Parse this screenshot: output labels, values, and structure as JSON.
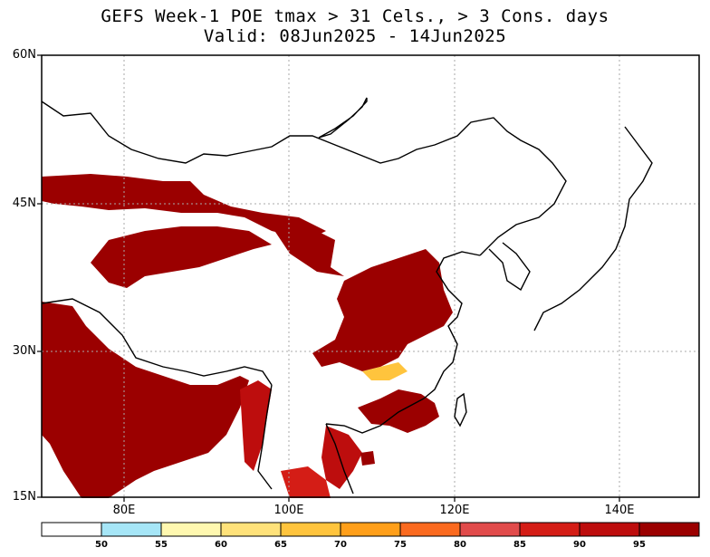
{
  "title": {
    "line1": "GEFS Week-1 POE tmax > 31 Cels., > 3 Cons. days",
    "line2": "Valid: 08Jun2025 - 14Jun2025"
  },
  "axes": {
    "lat_labels": [
      "60N",
      "45N",
      "30N",
      "15N"
    ],
    "lon_labels": [
      "80E",
      "100E",
      "120E",
      "140E"
    ]
  },
  "colorbar": {
    "levels": [
      "50",
      "55",
      "60",
      "65",
      "70",
      "75",
      "80",
      "85",
      "90",
      "95"
    ],
    "colors": [
      "#ffffff",
      "#a6e6f7",
      "#fff8b0",
      "#ffe27a",
      "#ffc43d",
      "#ff9f1a",
      "#fb6a1f",
      "#e14b4b",
      "#d41d16",
      "#bd0d0d",
      "#9b0000"
    ]
  },
  "colors": {
    "high_prob": "#9b0000",
    "border": "#000000",
    "grid": "#aaaaaa"
  }
}
